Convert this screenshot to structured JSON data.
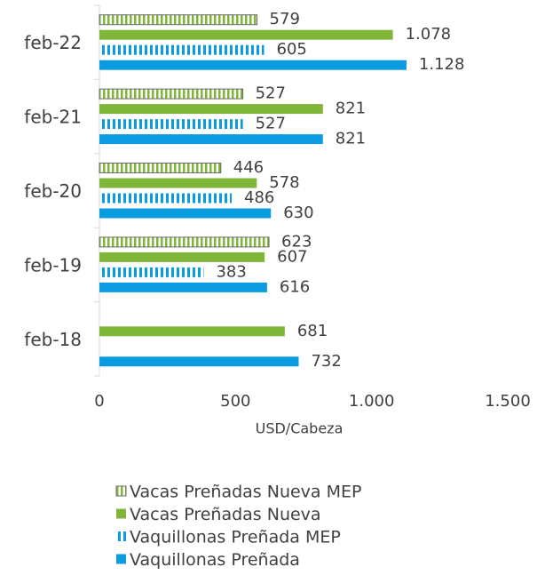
{
  "chart_data": {
    "type": "bar",
    "orientation": "horizontal",
    "categories": [
      "feb-22",
      "feb-21",
      "feb-20",
      "feb-19",
      "feb-18"
    ],
    "series": [
      {
        "name": "Vacas Preñadas Nueva MEP",
        "color": "#7fb539",
        "pattern": true,
        "values": [
          579,
          527,
          446,
          623,
          null
        ]
      },
      {
        "name": "Vacas Preñadas Nueva",
        "color": "#7fb539",
        "pattern": false,
        "values": [
          1078,
          821,
          578,
          607,
          681
        ],
        "value_labels": [
          "1.078",
          "821",
          "578",
          "607",
          "681"
        ]
      },
      {
        "name": "Vaquillonas Preñada MEP",
        "color": "#0a9be0",
        "pattern": true,
        "values": [
          605,
          527,
          486,
          383,
          null
        ]
      },
      {
        "name": "Vaquillonas Preñada",
        "color": "#0a9be0",
        "pattern": false,
        "values": [
          1128,
          821,
          630,
          616,
          732
        ],
        "value_labels": [
          "1.128",
          "821",
          "630",
          "616",
          "732"
        ]
      }
    ],
    "xlabel": "USD/Cabeza",
    "xlim": [
      0,
      1500
    ],
    "xticks": [
      0,
      500,
      {
        "value": 1000,
        "label": "1.000"
      },
      {
        "value": 1500,
        "label": "1.500"
      }
    ],
    "legend": "bottom"
  }
}
